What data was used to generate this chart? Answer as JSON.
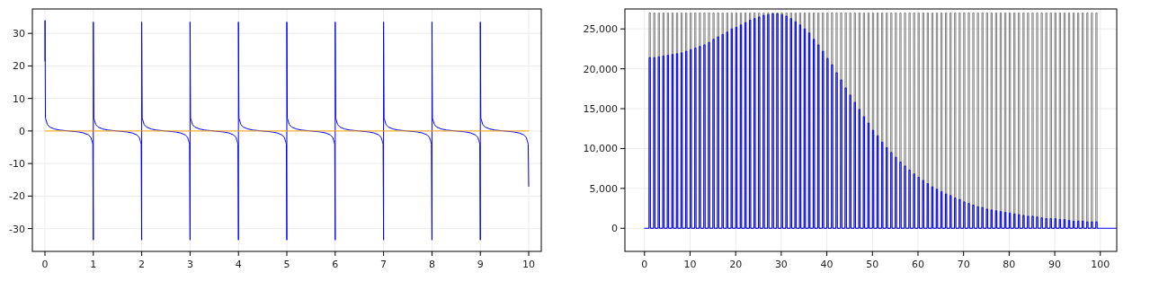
{
  "chart_data": [
    {
      "type": "line",
      "xlim": [
        -0.26,
        10.26
      ],
      "ylim": [
        -37,
        37.5
      ],
      "xticks": [
        0,
        1,
        2,
        3,
        4,
        5,
        6,
        7,
        8,
        9,
        10
      ],
      "yticks": [
        -30,
        -20,
        -10,
        0,
        10,
        20,
        30
      ],
      "grid": true,
      "x": [
        0,
        0.002,
        0.01,
        0.02,
        0.03,
        0.05,
        0.1,
        0.2,
        0.3,
        0.5,
        0.7,
        0.8,
        0.9,
        0.95,
        0.97,
        0.98,
        0.99,
        1,
        1,
        1.01,
        1.02,
        1.03,
        1.05,
        1.1,
        1.2,
        1.3,
        1.5,
        1.7,
        1.8,
        1.9,
        1.95,
        1.97,
        1.98,
        1.99,
        2,
        2,
        2.01,
        2.02,
        2.03,
        2.05,
        2.1,
        2.2,
        2.3,
        2.5,
        2.7,
        2.8,
        2.9,
        2.95,
        2.97,
        2.98,
        2.99,
        3,
        3,
        3.01,
        3.02,
        3.03,
        3.05,
        3.1,
        3.2,
        3.3,
        3.5,
        3.7,
        3.8,
        3.9,
        3.95,
        3.97,
        3.98,
        3.99,
        4,
        4,
        4.01,
        4.02,
        4.03,
        4.05,
        4.1,
        4.2,
        4.3,
        4.5,
        4.7,
        4.8,
        4.9,
        4.95,
        4.97,
        4.98,
        4.99,
        5,
        5,
        5.01,
        5.02,
        5.03,
        5.05,
        5.1,
        5.2,
        5.3,
        5.5,
        5.7,
        5.8,
        5.9,
        5.95,
        5.97,
        5.98,
        5.99,
        6,
        6,
        6.01,
        6.02,
        6.03,
        6.05,
        6.1,
        6.2,
        6.3,
        6.5,
        6.7,
        6.8,
        6.9,
        6.95,
        6.97,
        6.98,
        6.99,
        7,
        7,
        7.01,
        7.02,
        7.03,
        7.05,
        7.1,
        7.2,
        7.3,
        7.5,
        7.7,
        7.8,
        7.9,
        7.95,
        7.97,
        7.98,
        7.99,
        8,
        8,
        8.01,
        8.02,
        8.03,
        8.05,
        8.1,
        8.2,
        8.3,
        8.5,
        8.7,
        8.8,
        8.9,
        8.95,
        8.97,
        8.98,
        8.99,
        9,
        9,
        9.01,
        9.02,
        9.03,
        9.05,
        9.1,
        9.2,
        9.3,
        9.5,
        9.7,
        9.8,
        9.9,
        9.95,
        9.97,
        9.98,
        9.99,
        10
      ],
      "series": [
        {
          "color": "#0000ff",
          "values": [
            21.5,
            34,
            4,
            3.5,
            3,
            2,
            1.2,
            0.6,
            0.3,
            0,
            -0.3,
            -0.6,
            -1.2,
            -2,
            -3,
            -3.5,
            -4,
            -33.5,
            33.5,
            4,
            3.5,
            3,
            2,
            1.2,
            0.6,
            0.3,
            0,
            -0.3,
            -0.6,
            -1.2,
            -2,
            -3,
            -3.5,
            -4,
            -33.5,
            33.5,
            4,
            3.5,
            3,
            2,
            1.2,
            0.6,
            0.3,
            0,
            -0.3,
            -0.6,
            -1.2,
            -2,
            -3,
            -3.5,
            -4,
            -33.5,
            33.5,
            4,
            3.5,
            3,
            2,
            1.2,
            0.6,
            0.3,
            0,
            -0.3,
            -0.6,
            -1.2,
            -2,
            -3,
            -3.5,
            -4,
            -33.5,
            33.5,
            4,
            3.5,
            3,
            2,
            1.2,
            0.6,
            0.3,
            0,
            -0.3,
            -0.6,
            -1.2,
            -2,
            -3,
            -3.5,
            -4,
            -33.5,
            33.5,
            4,
            3.5,
            3,
            2,
            1.2,
            0.6,
            0.3,
            0,
            -0.3,
            -0.6,
            -1.2,
            -2,
            -3,
            -3.5,
            -4,
            -33.5,
            33.5,
            4,
            3.5,
            3,
            2,
            1.2,
            0.6,
            0.3,
            0,
            -0.3,
            -0.6,
            -1.2,
            -2,
            -3,
            -3.5,
            -4,
            -33.5,
            33.5,
            4,
            3.5,
            3,
            2,
            1.2,
            0.6,
            0.3,
            0,
            -0.3,
            -0.6,
            -1.2,
            -2,
            -3,
            -3.5,
            -4,
            -33.5,
            33.5,
            4,
            3.5,
            3,
            2,
            1.2,
            0.6,
            0.3,
            0,
            -0.3,
            -0.6,
            -1.2,
            -2,
            -3,
            -3.5,
            -4,
            -33.5,
            33.5,
            4,
            3.5,
            3,
            2,
            1.2,
            0.6,
            0.3,
            0,
            -0.3,
            -0.6,
            -1.2,
            -2,
            -3,
            -3.5,
            -4,
            -17
          ]
        },
        {
          "color": "#ffa500",
          "x": [
            0,
            10
          ],
          "values": [
            0,
            0
          ]
        }
      ]
    },
    {
      "type": "line",
      "xlim": [
        -4.3,
        103.6
      ],
      "ylim": [
        -2900,
        27500
      ],
      "xticks": [
        0,
        10,
        20,
        30,
        40,
        50,
        60,
        70,
        80,
        90,
        100
      ],
      "yticks": [
        0,
        {
          "value": 5000,
          "label": "5,000"
        },
        {
          "value": 10000,
          "label": "10,000"
        },
        {
          "value": 15000,
          "label": "15,000"
        },
        {
          "value": 20000,
          "label": "20,000"
        },
        {
          "value": 25000,
          "label": "25,000"
        }
      ],
      "grid": true,
      "x": [
        0,
        1,
        1.02,
        1.28,
        1.3,
        2,
        2.02,
        2.28,
        2.3,
        3,
        3.02,
        3.28,
        3.3,
        4,
        4.02,
        4.28,
        4.3,
        5,
        5.02,
        5.28,
        5.3,
        6,
        6.02,
        6.28,
        6.3,
        7,
        7.02,
        7.28,
        7.3,
        8,
        8.02,
        8.28,
        8.3,
        9,
        9.02,
        9.28,
        9.3,
        10,
        10.02,
        10.28,
        10.3,
        11,
        11.02,
        11.28,
        11.3,
        12,
        12.02,
        12.28,
        12.3,
        13,
        13.02,
        13.28,
        13.3,
        14,
        14.02,
        14.28,
        14.3,
        15,
        15.02,
        15.28,
        15.3,
        16,
        16.02,
        16.28,
        16.3,
        17,
        17.02,
        17.28,
        17.3,
        18,
        18.02,
        18.28,
        18.3,
        19,
        19.02,
        19.28,
        19.3,
        20,
        20.02,
        20.28,
        20.3,
        21,
        21.02,
        21.28,
        21.3,
        22,
        22.02,
        22.28,
        22.3,
        23,
        23.02,
        23.28,
        23.3,
        24,
        24.02,
        24.28,
        24.3,
        25,
        25.02,
        25.28,
        25.3,
        26,
        26.02,
        26.28,
        26.3,
        27,
        27.02,
        27.28,
        27.3,
        28,
        28.02,
        28.28,
        28.3,
        29,
        29.02,
        29.28,
        29.3,
        30,
        30.02,
        30.28,
        30.3,
        31,
        31.02,
        31.28,
        31.3,
        32,
        32.02,
        32.28,
        32.3,
        33,
        33.02,
        33.28,
        33.3,
        34,
        34.02,
        34.28,
        34.3,
        35,
        35.02,
        35.28,
        35.3,
        36,
        36.02,
        36.28,
        36.3,
        37,
        37.02,
        37.28,
        37.3,
        38,
        38.02,
        38.28,
        38.3,
        39,
        39.02,
        39.28,
        39.3,
        40,
        40.02,
        40.28,
        40.3,
        41,
        41.02,
        41.28,
        41.3,
        42,
        42.02,
        42.28,
        42.3,
        43,
        43.02,
        43.28,
        43.3,
        44,
        44.02,
        44.28,
        44.3,
        45,
        45.02,
        45.28,
        45.3,
        46,
        46.02,
        46.28,
        46.3,
        47,
        47.02,
        47.28,
        47.3,
        48,
        48.02,
        48.28,
        48.3,
        49,
        49.02,
        49.28,
        49.3,
        50,
        50.02,
        50.28,
        50.3,
        51,
        51.02,
        51.28,
        51.3,
        52,
        52.02,
        52.28,
        52.3,
        53,
        53.02,
        53.28,
        53.3,
        54,
        54.02,
        54.28,
        54.3,
        55,
        55.02,
        55.28,
        55.3,
        56,
        56.02,
        56.28,
        56.3,
        57,
        57.02,
        57.28,
        57.3,
        58,
        58.02,
        58.28,
        58.3,
        59,
        59.02,
        59.28,
        59.3,
        60,
        60.02,
        60.28,
        60.3,
        61,
        61.02,
        61.28,
        61.3,
        62,
        62.02,
        62.28,
        62.3,
        63,
        63.02,
        63.28,
        63.3,
        64,
        64.02,
        64.28,
        64.3,
        65,
        65.02,
        65.28,
        65.3,
        66,
        66.02,
        66.28,
        66.3,
        67,
        67.02,
        67.28,
        67.3,
        68,
        68.02,
        68.28,
        68.3,
        69,
        69.02,
        69.28,
        69.3,
        70,
        70.02,
        70.28,
        70.3,
        71,
        71.02,
        71.28,
        71.3,
        72,
        72.02,
        72.28,
        72.3,
        73,
        73.02,
        73.28,
        73.3,
        74,
        74.02,
        74.28,
        74.3,
        75,
        75.02,
        75.28,
        75.3,
        76,
        76.02,
        76.28,
        76.3,
        77,
        77.02,
        77.28,
        77.3,
        78,
        78.02,
        78.28,
        78.3,
        79,
        79.02,
        79.28,
        79.3,
        80,
        80.02,
        80.28,
        80.3,
        81,
        81.02,
        81.28,
        81.3,
        82,
        82.02,
        82.28,
        82.3,
        83,
        83.02,
        83.28,
        83.3,
        84,
        84.02,
        84.28,
        84.3,
        85,
        85.02,
        85.28,
        85.3,
        86,
        86.02,
        86.28,
        86.3,
        87,
        87.02,
        87.28,
        87.3,
        88,
        88.02,
        88.28,
        88.3,
        89,
        89.02,
        89.28,
        89.3,
        90,
        90.02,
        90.28,
        90.3,
        91,
        91.02,
        91.28,
        91.3,
        92,
        92.02,
        92.28,
        92.3,
        93,
        93.02,
        93.28,
        93.3,
        94,
        94.02,
        94.28,
        94.3,
        95,
        95.02,
        95.28,
        95.3,
        96,
        96.02,
        96.28,
        96.3,
        97,
        97.02,
        97.28,
        97.3,
        98,
        98.02,
        98.28,
        98.3,
        99,
        99.02,
        99.28,
        99.3,
        103.6
      ],
      "series": [
        {
          "color": "#808080",
          "values": [
            null,
            0,
            27000,
            27000,
            0,
            0,
            27000,
            27000,
            0,
            0,
            27000,
            27000,
            0,
            0,
            27000,
            27000,
            0,
            0,
            27000,
            27000,
            0,
            0,
            27000,
            27000,
            0,
            0,
            27000,
            27000,
            0,
            0,
            27000,
            27000,
            0,
            0,
            27000,
            27000,
            0,
            0,
            27000,
            27000,
            0,
            0,
            27000,
            27000,
            0,
            0,
            27000,
            27000,
            0,
            0,
            27000,
            27000,
            0,
            0,
            27000,
            27000,
            0,
            0,
            27000,
            27000,
            0,
            0,
            27000,
            27000,
            0,
            0,
            27000,
            27000,
            0,
            0,
            27000,
            27000,
            0,
            0,
            27000,
            27000,
            0,
            0,
            27000,
            27000,
            0,
            0,
            27000,
            27000,
            0,
            0,
            27000,
            27000,
            0,
            0,
            27000,
            27000,
            0,
            0,
            27000,
            27000,
            0,
            0,
            27000,
            27000,
            0,
            0,
            27000,
            27000,
            0,
            0,
            27000,
            27000,
            0,
            0,
            27000,
            27000,
            0,
            0,
            27000,
            27000,
            0,
            0,
            27000,
            27000,
            0,
            0,
            27000,
            27000,
            0,
            0,
            27000,
            27000,
            0,
            0,
            27000,
            27000,
            0,
            0,
            27000,
            27000,
            0,
            0,
            27000,
            27000,
            0,
            0,
            27000,
            27000,
            0,
            0,
            27000,
            27000,
            0,
            0,
            27000,
            27000,
            0,
            0,
            27000,
            27000,
            0,
            0,
            27000,
            27000,
            0,
            0,
            27000,
            27000,
            0,
            0,
            27000,
            27000,
            0,
            0,
            27000,
            27000,
            0,
            0,
            27000,
            27000,
            0,
            0,
            27000,
            27000,
            0,
            0,
            27000,
            27000,
            0,
            0,
            27000,
            27000,
            0,
            0,
            27000,
            27000,
            0,
            0,
            27000,
            27000,
            0,
            0,
            27000,
            27000,
            0,
            0,
            27000,
            27000,
            0,
            0,
            27000,
            27000,
            0,
            0,
            27000,
            27000,
            0,
            0,
            27000,
            27000,
            0,
            0,
            27000,
            27000,
            0,
            0,
            27000,
            27000,
            0,
            0,
            27000,
            27000,
            0,
            0,
            27000,
            27000,
            0,
            0,
            27000,
            27000,
            0,
            0,
            27000,
            27000,
            0,
            0,
            27000,
            27000,
            0,
            0,
            27000,
            27000,
            0,
            0,
            27000,
            27000,
            0,
            0,
            27000,
            27000,
            0,
            0,
            27000,
            27000,
            0,
            0,
            27000,
            27000,
            0,
            0,
            27000,
            27000,
            0,
            0,
            27000,
            27000,
            0,
            0,
            27000,
            27000,
            0,
            0,
            27000,
            27000,
            0,
            0,
            27000,
            27000,
            0,
            0,
            27000,
            27000,
            0,
            0,
            27000,
            27000,
            0,
            0,
            27000,
            27000,
            0,
            0,
            27000,
            27000,
            0,
            0,
            27000,
            27000,
            0,
            0,
            27000,
            27000,
            0,
            0,
            27000,
            27000,
            0,
            0,
            27000,
            27000,
            0,
            0,
            27000,
            27000,
            0,
            0,
            27000,
            27000,
            0,
            0,
            27000,
            27000,
            0,
            0,
            27000,
            27000,
            0,
            0,
            27000,
            27000,
            0,
            0,
            27000,
            27000,
            0,
            0,
            27000,
            27000,
            0,
            0,
            27000,
            27000,
            0,
            0,
            27000,
            27000,
            0,
            0,
            27000,
            27000,
            0,
            0,
            27000,
            27000,
            0,
            0,
            27000,
            27000,
            0,
            0,
            27000,
            27000,
            0,
            0,
            27000,
            27000,
            0,
            0,
            27000,
            27000,
            0,
            0,
            27000,
            27000,
            0,
            0,
            27000,
            27000,
            0,
            0,
            27000,
            27000,
            0,
            0,
            27000,
            27000,
            0,
            0,
            27000,
            27000,
            0,
            null
          ]
        },
        {
          "color": "#0000ff",
          "values": [
            0,
            0,
            21400,
            21400,
            0,
            0,
            21400,
            21400,
            0,
            0,
            21500,
            21500,
            0,
            0,
            21600,
            21600,
            0,
            0,
            21700,
            21700,
            0,
            0,
            21800,
            21800,
            0,
            0,
            21900,
            21900,
            0,
            0,
            22000,
            22000,
            0,
            0,
            22200,
            22200,
            0,
            0,
            22400,
            22400,
            0,
            0,
            22600,
            22600,
            0,
            0,
            22800,
            22800,
            0,
            0,
            23000,
            23000,
            0,
            0,
            23300,
            23300,
            0,
            0,
            23700,
            23700,
            0,
            0,
            24000,
            24000,
            0,
            0,
            24300,
            24300,
            0,
            0,
            24600,
            24600,
            0,
            0,
            25000,
            25000,
            0,
            0,
            25200,
            25200,
            0,
            0,
            25500,
            25500,
            0,
            0,
            25800,
            25800,
            0,
            0,
            26100,
            26100,
            0,
            0,
            26300,
            26300,
            0,
            0,
            26500,
            26500,
            0,
            0,
            26700,
            26700,
            0,
            0,
            26800,
            26800,
            0,
            0,
            26900,
            26900,
            0,
            0,
            26900,
            26900,
            0,
            0,
            26800,
            26800,
            0,
            0,
            26600,
            26600,
            0,
            0,
            26300,
            26300,
            0,
            0,
            25900,
            25900,
            0,
            0,
            25500,
            25500,
            0,
            0,
            25000,
            25000,
            0,
            0,
            24500,
            24500,
            0,
            0,
            23700,
            23700,
            0,
            0,
            23000,
            23000,
            0,
            0,
            22200,
            22200,
            0,
            0,
            21300,
            21300,
            0,
            0,
            20500,
            20500,
            0,
            0,
            19500,
            19500,
            0,
            0,
            18600,
            18600,
            0,
            0,
            17600,
            17600,
            0,
            0,
            16700,
            16700,
            0,
            0,
            15800,
            15800,
            0,
            0,
            14900,
            14900,
            0,
            0,
            14000,
            14000,
            0,
            0,
            13200,
            13200,
            0,
            0,
            12300,
            12300,
            0,
            0,
            11600,
            11600,
            0,
            0,
            10800,
            10800,
            0,
            0,
            10100,
            10100,
            0,
            0,
            9500,
            9500,
            0,
            0,
            8900,
            8900,
            0,
            0,
            8300,
            8300,
            0,
            0,
            7800,
            7800,
            0,
            0,
            7300,
            7300,
            0,
            0,
            6800,
            6800,
            0,
            0,
            6400,
            6400,
            0,
            0,
            6000,
            6000,
            0,
            0,
            5600,
            5600,
            0,
            0,
            5200,
            5200,
            0,
            0,
            4900,
            4900,
            0,
            0,
            4600,
            4600,
            0,
            0,
            4300,
            4300,
            0,
            0,
            4100,
            4100,
            0,
            0,
            3800,
            3800,
            0,
            0,
            3600,
            3600,
            0,
            0,
            3300,
            3300,
            0,
            0,
            3100,
            3100,
            0,
            0,
            2900,
            2900,
            0,
            0,
            2700,
            2700,
            0,
            0,
            2600,
            2600,
            0,
            0,
            2400,
            2400,
            0,
            0,
            2300,
            2300,
            0,
            0,
            2200,
            2200,
            0,
            0,
            2100,
            2100,
            0,
            0,
            2000,
            2000,
            0,
            0,
            1900,
            1900,
            0,
            0,
            1800,
            1800,
            0,
            0,
            1700,
            1700,
            0,
            0,
            1600,
            1600,
            0,
            0,
            1500,
            1500,
            0,
            0,
            1500,
            1500,
            0,
            0,
            1400,
            1400,
            0,
            0,
            1300,
            1300,
            0,
            0,
            1200,
            1200,
            0,
            0,
            1200,
            1200,
            0,
            0,
            1200,
            1200,
            0,
            0,
            1100,
            1100,
            0,
            0,
            1100,
            1100,
            0,
            0,
            1000,
            1000,
            0,
            0,
            900,
            900,
            0,
            0,
            900,
            900,
            0,
            0,
            900,
            900,
            0,
            0,
            800,
            800,
            0,
            0,
            800,
            800,
            0,
            0,
            800,
            800,
            0,
            0
          ]
        }
      ]
    }
  ]
}
